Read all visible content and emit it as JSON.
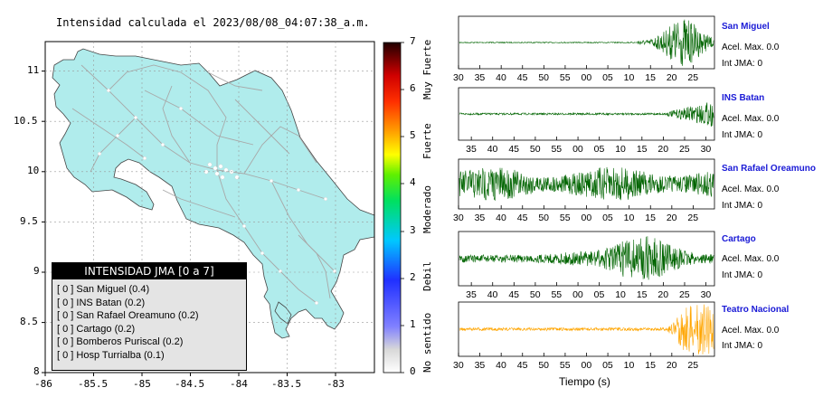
{
  "title": "Intensidad calculada el 2023/08/08_04:07:38_a.m.",
  "map": {
    "x_ticks": [
      "-86",
      "-85.5",
      "-85",
      "-84.5",
      "-84",
      "-83.5",
      "-83"
    ],
    "y_ticks": [
      "11",
      "10.5",
      "10",
      "9.5",
      "9",
      "8.5",
      "8"
    ],
    "lon_range": [
      -86,
      -82.6
    ],
    "lat_range": [
      8,
      11.35
    ],
    "land_color": "#b0ecec"
  },
  "colorbar": {
    "ticks": [
      "0",
      "1",
      "2",
      "3",
      "4",
      "5",
      "6",
      "7"
    ],
    "classes": [
      "No sentido",
      "Debil",
      "Moderado",
      "Fuerte",
      "Muy Fuerte"
    ]
  },
  "legend": {
    "title": "INTENSIDAD JMA [0 a 7]",
    "items": [
      "[ 0 ]  San Miguel (0.4)",
      "[ 0 ]  INS Batan (0.2)",
      "[ 0 ]  San Rafael Oreamuno (0.2)",
      "[ 0 ]  Cartago (0.2)",
      "[ 0 ]  Bomberos Puriscal (0.2)",
      "[ 0 ]  Hosp Turrialba (0.1)"
    ]
  },
  "waveforms": {
    "xlabel": "Tiempo (s)",
    "stations": [
      {
        "name": "San Miguel",
        "accel": "Acel. Max. 0.0",
        "jma": "Int JMA: 0",
        "color": "#006400",
        "ticks": [
          "30",
          "35",
          "40",
          "45",
          "50",
          "55",
          "00",
          "05",
          "10",
          "15",
          "20",
          "25"
        ]
      },
      {
        "name": "INS Batan",
        "accel": "Acel. Max. 0.0",
        "jma": "Int JMA: 0",
        "color": "#006400",
        "ticks": [
          "35",
          "40",
          "45",
          "50",
          "55",
          "00",
          "05",
          "10",
          "15",
          "20",
          "25",
          "30"
        ]
      },
      {
        "name": "San Rafael Oreamuno",
        "accel": "Acel. Max. 0.0",
        "jma": "Int JMA: 0",
        "color": "#006400",
        "ticks": [
          "30",
          "35",
          "40",
          "45",
          "50",
          "55",
          "00",
          "05",
          "10",
          "15",
          "20",
          "25"
        ]
      },
      {
        "name": "Cartago",
        "accel": "Acel. Max. 0.0",
        "jma": "Int JMA: 0",
        "color": "#006400",
        "ticks": [
          "35",
          "40",
          "45",
          "50",
          "55",
          "00",
          "05",
          "10",
          "15",
          "20",
          "25",
          "30"
        ]
      },
      {
        "name": "Teatro Nacional",
        "accel": "Acel. Max. 0.0",
        "jma": "Int JMA: 0",
        "color": "#ffa500",
        "ticks": [
          "30",
          "35",
          "40",
          "45",
          "50",
          "55",
          "00",
          "05",
          "10",
          "15",
          "20",
          "25"
        ]
      }
    ]
  },
  "chart_data": {
    "type": "map",
    "title": "Intensidad calculada el 2023/08/08_04:07:38_a.m.",
    "xlim": [
      -86,
      -82.6
    ],
    "ylim": [
      8,
      11.35
    ],
    "stations": [
      {
        "name": "San Miguel",
        "jma_intensity": 0,
        "value": 0.4
      },
      {
        "name": "INS Batan",
        "jma_intensity": 0,
        "value": 0.2
      },
      {
        "name": "San Rafael Oreamuno",
        "jma_intensity": 0,
        "value": 0.2
      },
      {
        "name": "Cartago",
        "jma_intensity": 0,
        "value": 0.2
      },
      {
        "name": "Bomberos Puriscal",
        "jma_intensity": 0,
        "value": 0.2
      },
      {
        "name": "Hosp Turrialba",
        "jma_intensity": 0,
        "value": 0.1
      }
    ],
    "colorbar_range": [
      0,
      7
    ]
  }
}
